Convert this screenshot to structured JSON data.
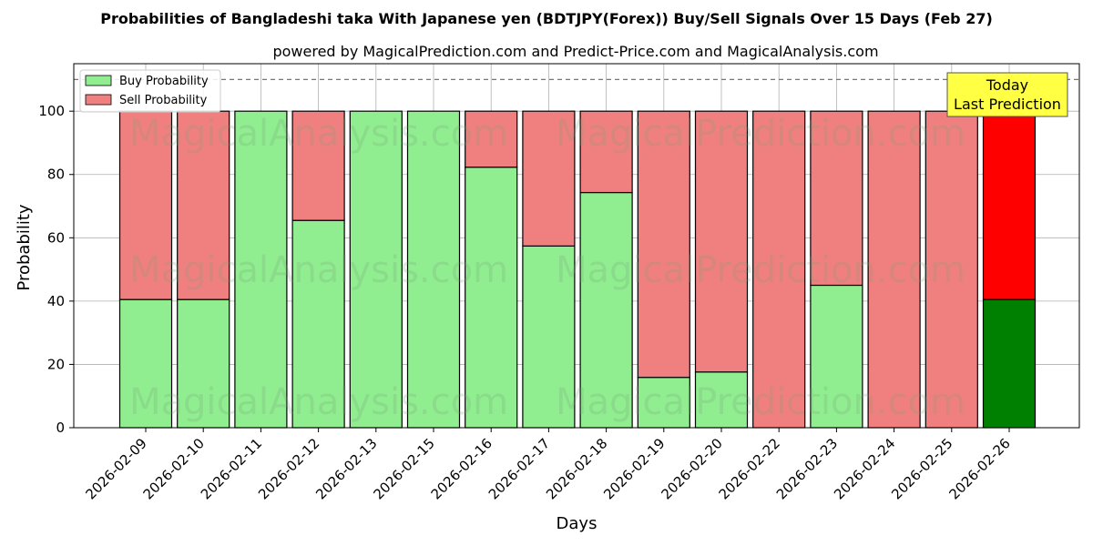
{
  "chart_data": {
    "type": "bar",
    "stacked": true,
    "title": "Probabilities of Bangladeshi taka With Japanese yen (BDTJPY(Forex)) Buy/Sell Signals Over 15 Days (Feb 27)",
    "subtitle": "powered by MagicalPrediction.com and Predict-Price.com and MagicalAnalysis.com",
    "xlabel": "Days",
    "ylabel": "Probability",
    "ylim": [
      0,
      115
    ],
    "yticks": [
      0,
      20,
      40,
      60,
      80,
      100
    ],
    "grid": true,
    "legend_position": "top-left",
    "reference_line": 110,
    "categories": [
      "2026-02-09",
      "2026-02-10",
      "2026-02-11",
      "2026-02-12",
      "2026-02-13",
      "2026-02-15",
      "2026-02-16",
      "2026-02-17",
      "2026-02-18",
      "2026-02-19",
      "2026-02-20",
      "2026-02-22",
      "2026-02-23",
      "2026-02-24",
      "2026-02-25",
      "2026-02-26"
    ],
    "series": [
      {
        "name": "Buy Probability",
        "color": "#90ee90",
        "highlight_color": "#008000",
        "values": [
          40.5,
          40.5,
          100,
          65.5,
          100,
          100,
          82.3,
          57.4,
          74.3,
          15.9,
          17.6,
          0,
          45,
          0,
          0,
          40.5
        ]
      },
      {
        "name": "Sell Probability",
        "color": "#f08080",
        "highlight_color": "#ff0000",
        "values": [
          59.5,
          59.5,
          0,
          34.5,
          0,
          0,
          17.7,
          42.6,
          25.7,
          84.1,
          82.4,
          100,
          55,
          100,
          100,
          59.5
        ]
      }
    ],
    "highlight_index": 15,
    "annotation": {
      "text_lines": [
        "Today",
        "Last Prediction"
      ],
      "background": "#ffff44"
    },
    "watermark": {
      "texts": [
        "MagicalAnalysis.com",
        "MagicalPrediction.com"
      ]
    }
  }
}
